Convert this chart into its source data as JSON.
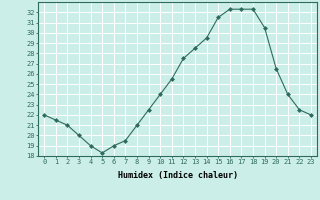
{
  "x": [
    0,
    1,
    2,
    3,
    4,
    5,
    6,
    7,
    8,
    9,
    10,
    11,
    12,
    13,
    14,
    15,
    16,
    17,
    18,
    19,
    20,
    21,
    22,
    23
  ],
  "y": [
    22,
    21.5,
    21,
    20,
    19,
    18.3,
    19,
    19.5,
    21,
    22.5,
    24,
    25.5,
    27.5,
    28.5,
    29.5,
    31.5,
    32.3,
    32.3,
    32.3,
    30.5,
    26.5,
    24,
    22.5,
    22
  ],
  "xlabel": "Humidex (Indice chaleur)",
  "line_color": "#2e6b5e",
  "marker": "D",
  "marker_size": 2,
  "bg_color": "#cceee8",
  "grid_color": "#ffffff",
  "ylim": [
    18,
    33
  ],
  "xlim": [
    -0.5,
    23.5
  ],
  "yticks": [
    18,
    19,
    20,
    21,
    22,
    23,
    24,
    25,
    26,
    27,
    28,
    29,
    30,
    31,
    32
  ],
  "xticks": [
    0,
    1,
    2,
    3,
    4,
    5,
    6,
    7,
    8,
    9,
    10,
    11,
    12,
    13,
    14,
    15,
    16,
    17,
    18,
    19,
    20,
    21,
    22,
    23
  ],
  "tick_fontsize": 5,
  "xlabel_fontsize": 6,
  "spine_color": "#2e6b5e"
}
